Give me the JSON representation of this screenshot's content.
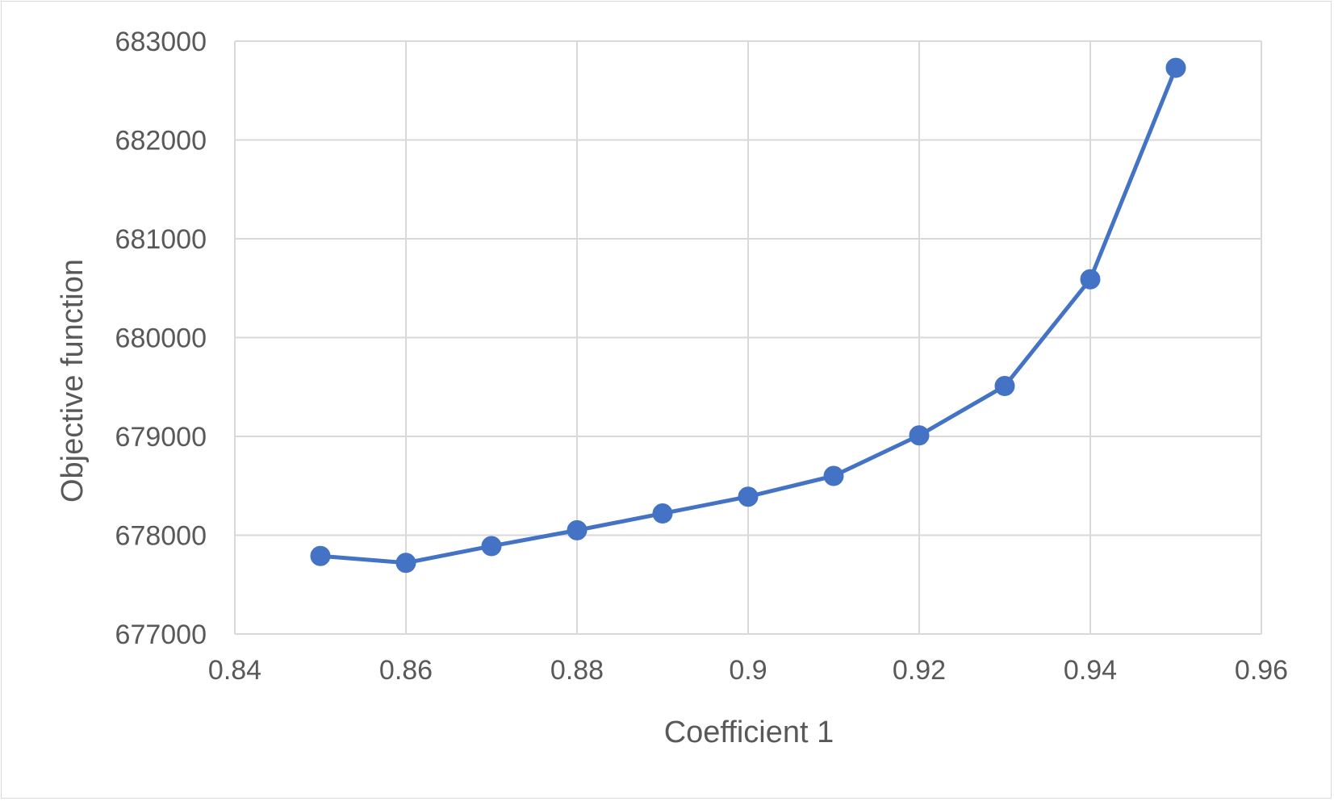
{
  "chart_data": {
    "type": "line",
    "title": "",
    "xlabel": "Coefficient 1",
    "ylabel": "Objective function",
    "xlim": [
      0.84,
      0.96
    ],
    "ylim": [
      677000,
      683000
    ],
    "x_ticks": [
      "0.84",
      "0.86",
      "0.88",
      "0.9",
      "0.92",
      "0.94",
      "0.96"
    ],
    "y_ticks": [
      "677000",
      "678000",
      "679000",
      "680000",
      "681000",
      "682000",
      "683000"
    ],
    "grid": true,
    "legend": "none",
    "series": [
      {
        "color": "#4472c4",
        "marker": "circle",
        "x": [
          0.85,
          0.86,
          0.87,
          0.88,
          0.89,
          0.9,
          0.91,
          0.92,
          0.93,
          0.94,
          0.95
        ],
        "y": [
          677790,
          677720,
          677890,
          678050,
          678220,
          678390,
          678600,
          679010,
          679510,
          680590,
          682730
        ]
      }
    ]
  }
}
